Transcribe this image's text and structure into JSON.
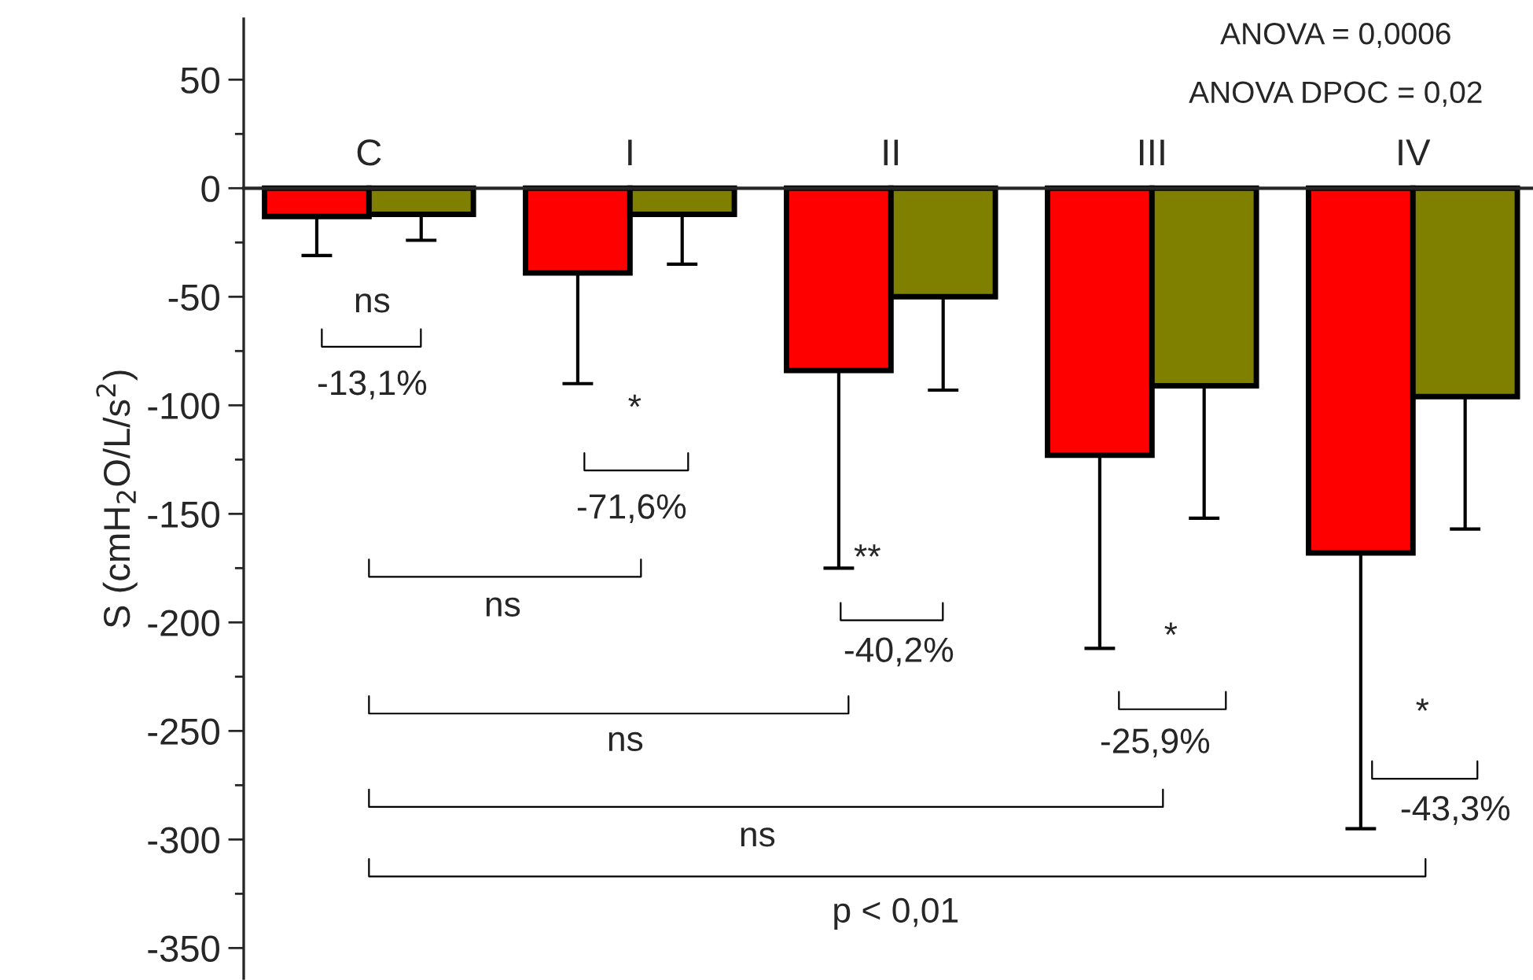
{
  "chart_data": {
    "type": "bar",
    "ylabel": "S (cmH$_{2}$O/L/s$^{2}$)",
    "categories": [
      "C",
      "I",
      "II",
      "III",
      "IV"
    ],
    "series": [
      {
        "color": "#ff0000",
        "values": [
          -13,
          -39,
          -84,
          -123,
          -168
        ],
        "errors": [
          [
            -31,
            -13
          ],
          [
            -90,
            -39
          ],
          [
            -175,
            -84
          ],
          [
            -212,
            -123
          ],
          [
            -295,
            -168
          ]
        ]
      },
      {
        "color": "#808000",
        "values": [
          -12,
          -12,
          -50,
          -91,
          -96
        ],
        "errors": [
          [
            -24,
            -12
          ],
          [
            -35,
            -12
          ],
          [
            -93,
            -50
          ],
          [
            -152,
            -91
          ],
          [
            -157,
            -96
          ]
        ]
      }
    ],
    "ylim": [
      -364,
      78
    ],
    "yticks": [
      50,
      0,
      -50,
      -100,
      -150,
      -200,
      -250,
      -300,
      -350
    ],
    "tick_labels": "y",
    "grid": false,
    "annotations": [
      "ANOVA = 0,0006",
      "ANOVA DPOC = 0,02",
      "ns",
      "-13,1%",
      "*",
      "-71,6%",
      "ns",
      "**",
      "-40,2%",
      "ns",
      "*",
      "-25,9%",
      "ns",
      "*",
      "-43,3%",
      "p < 0,01"
    ]
  }
}
